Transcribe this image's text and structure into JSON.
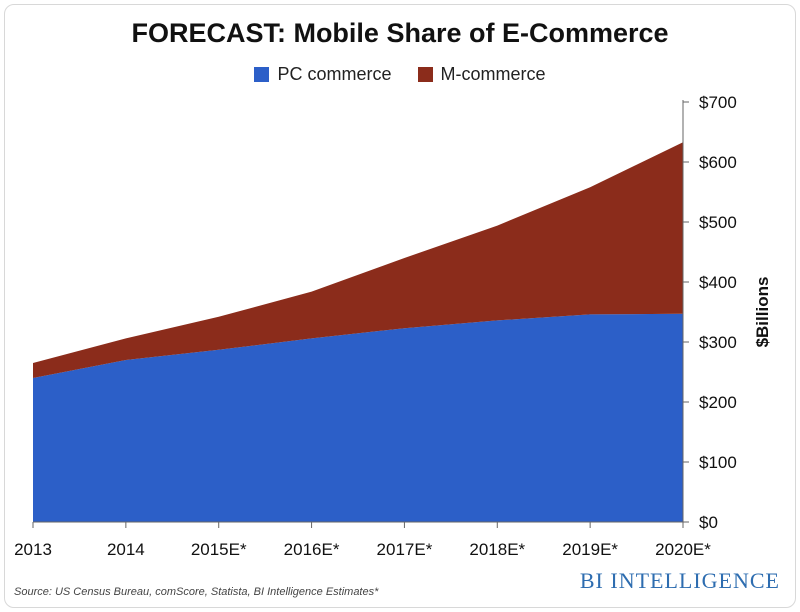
{
  "chart_data": {
    "type": "area",
    "stacked": true,
    "title": "FORECAST: Mobile Share of E-Commerce",
    "categories": [
      "2013",
      "2014",
      "2015E*",
      "2016E*",
      "2017E*",
      "2018E*",
      "2019E*",
      "2020E*"
    ],
    "series": [
      {
        "name": "PC commerce",
        "color": "#2c5fc8",
        "values": [
          240,
          270,
          287,
          306,
          323,
          336,
          346,
          347
        ]
      },
      {
        "name": "M-commerce",
        "color": "#8b2c1b",
        "values": [
          25,
          36,
          55,
          78,
          117,
          158,
          212,
          286
        ]
      }
    ],
    "ylabel": "$Billions",
    "ylim": [
      0,
      700
    ],
    "yticks": [
      0,
      100,
      200,
      300,
      400,
      500,
      600,
      700
    ],
    "ytick_labels": [
      "$0",
      "$100",
      "$200",
      "$300",
      "$400",
      "$500",
      "$600",
      "$700"
    ],
    "y_axis_side": "right",
    "legend_position": "top-center",
    "grid": false
  },
  "footer": {
    "source": "Source: US Census Bureau, comScore, Statista, BI Intelligence Estimates*",
    "brand": "BI INTELLIGENCE"
  }
}
